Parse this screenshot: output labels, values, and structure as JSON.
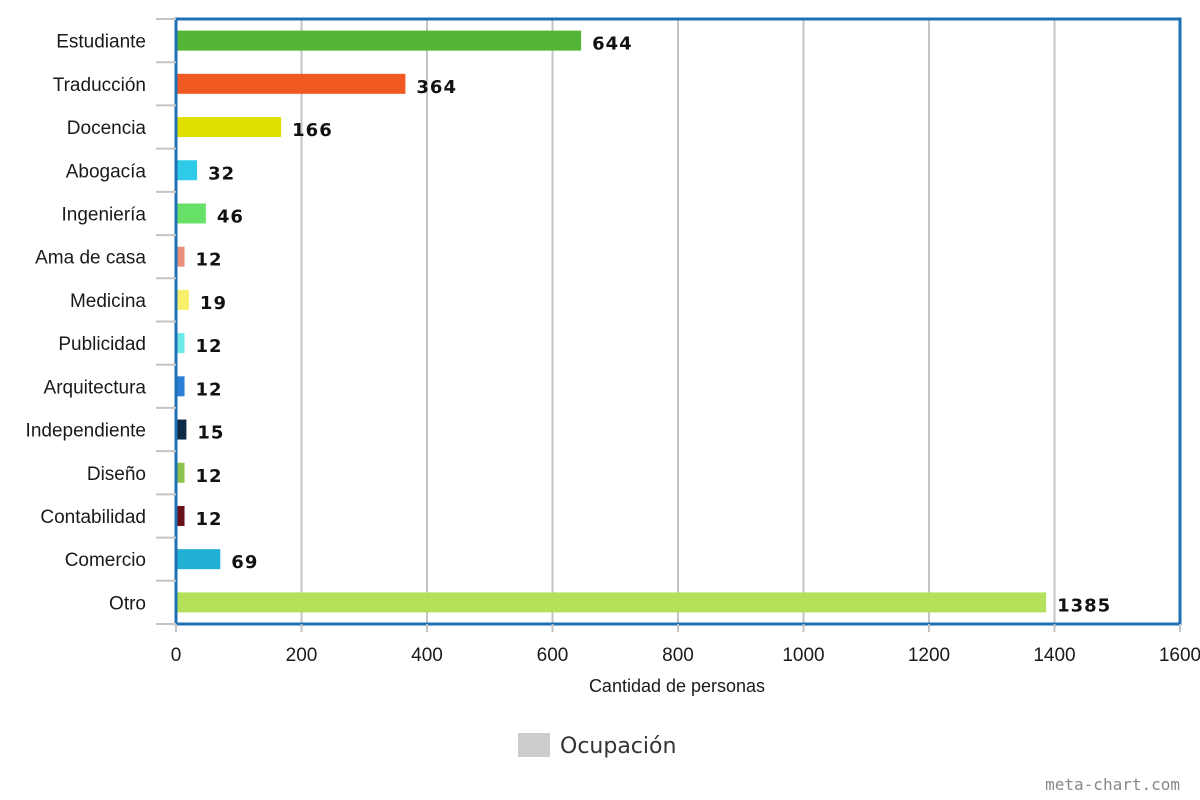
{
  "chart_data": {
    "type": "bar",
    "orientation": "horizontal",
    "categories": [
      "Estudiante",
      "Traducción",
      "Docencia",
      "Abogacía",
      "Ingeniería",
      "Ama de casa",
      "Medicina",
      "Publicidad",
      "Arquitectura",
      "Independiente",
      "Diseño",
      "Contabilidad",
      "Comercio",
      "Otro"
    ],
    "values": [
      644,
      364,
      166,
      32,
      46,
      12,
      19,
      12,
      12,
      15,
      12,
      12,
      69,
      1385
    ],
    "data_labels": [
      "644",
      "364",
      "166",
      "32",
      "46",
      "12",
      "19",
      "12",
      "12",
      "15",
      "12",
      "12",
      "69",
      "1385"
    ],
    "colors": [
      "#54b435",
      "#f05a22",
      "#e0e000",
      "#2ecbe8",
      "#66e066",
      "#e8907a",
      "#f8ef6a",
      "#6fe8e8",
      "#2a7fd4",
      "#0d2b45",
      "#8fc24a",
      "#6b0f1a",
      "#1fb0d4",
      "#b4e05a"
    ],
    "xlabel": "Cantidad de personas",
    "xlim": [
      0,
      1600
    ],
    "x_ticks": [
      "0",
      "200",
      "400",
      "600",
      "800",
      "1000",
      "1200",
      "1400",
      "1600"
    ],
    "grid": true,
    "frame_color": "#1f6fb5",
    "legend": {
      "label": "Ocupación",
      "swatch_color": "#cccccc",
      "placement": "bottom-center"
    }
  },
  "watermark": "meta-chart.com"
}
